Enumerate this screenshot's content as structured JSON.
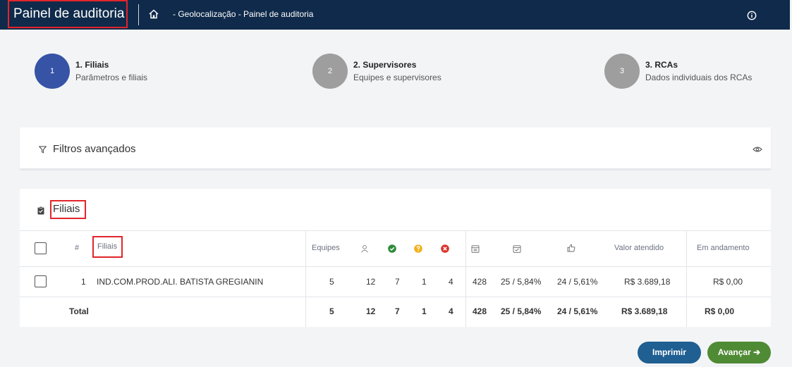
{
  "header": {
    "app_title": "Painel de auditoria",
    "breadcrumb": "- Geolocalização - Painel de auditoria"
  },
  "steps": [
    {
      "number": "1",
      "title": "1. Filiais",
      "subtitle": "Parâmetros e filiais",
      "color": "#3653a6"
    },
    {
      "number": "2",
      "title": "2. Supervisores",
      "subtitle": "Equipes e supervisores",
      "color": "#9e9e9e"
    },
    {
      "number": "3",
      "title": "3. RCAs",
      "subtitle": "Dados individuais dos RCAs",
      "color": "#9e9e9e"
    }
  ],
  "filters": {
    "label": "Filtros avançados"
  },
  "filiais_panel": {
    "title": "Filiais",
    "columns": {
      "num": "#",
      "filiais": "Filiais",
      "equipes": "Equipes",
      "valor_atendido": "Valor atendido",
      "em_andamento": "Em andamento"
    },
    "rows": [
      {
        "num": "1",
        "name": "IND.COM.PROD.ALI. BATISTA GREGIANIN",
        "equipes": "5",
        "people": "12",
        "ok": "7",
        "warn": "1",
        "err": "4",
        "cal": "428",
        "cal_check": "25 / 5,84%",
        "thumb": "24 / 5,61%",
        "valor": "R$ 3.689,18",
        "andamento": "R$ 0,00"
      }
    ],
    "total": {
      "label": "Total",
      "equipes": "5",
      "people": "12",
      "ok": "7",
      "warn": "1",
      "err": "4",
      "cal": "428",
      "cal_check": "25 / 5,84%",
      "thumb": "24 / 5,61%",
      "valor": "R$ 3.689,18",
      "andamento": "R$ 0,00"
    }
  },
  "buttons": {
    "print": "Imprimir",
    "next": "Avançar ➔"
  },
  "colors": {
    "header_bg": "#0f2a4a",
    "step_active": "#3653a6",
    "ok_green": "#2e8b3a",
    "warn_yellow": "#f2b01e",
    "err_red": "#d9342b",
    "print_blue": "#1f5f92",
    "next_green": "#4f8a34"
  }
}
